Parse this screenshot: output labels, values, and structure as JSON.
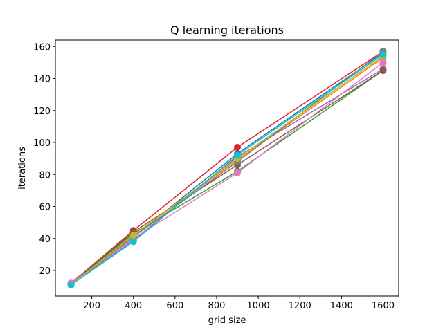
{
  "chart_data": {
    "type": "line",
    "title": "Q learning iterations",
    "xlabel": "grid size",
    "ylabel": "iterations",
    "xlim": [
      25,
      1675
    ],
    "ylim": [
      4,
      164
    ],
    "xticks": [
      200,
      400,
      600,
      800,
      1000,
      1200,
      1400,
      1600
    ],
    "yticks": [
      20,
      40,
      60,
      80,
      100,
      120,
      140,
      160
    ],
    "grid": false,
    "legend": "none",
    "marker": "circle",
    "x": [
      100,
      400,
      900,
      1600
    ],
    "series": [
      {
        "color": "#1f77b4",
        "values": [
          12,
          41,
          93,
          156
        ]
      },
      {
        "color": "#ff7f0e",
        "values": [
          12,
          42,
          89,
          153
        ]
      },
      {
        "color": "#2ca02c",
        "values": [
          12,
          43,
          82,
          145
        ]
      },
      {
        "color": "#d62728",
        "values": [
          12,
          45,
          97,
          157
        ]
      },
      {
        "color": "#9467bd",
        "values": [
          11,
          39,
          91,
          146
        ]
      },
      {
        "color": "#8c564b",
        "values": [
          12,
          44,
          86,
          145
        ]
      },
      {
        "color": "#e377c2",
        "values": [
          12,
          40,
          81,
          150
        ]
      },
      {
        "color": "#7f7f7f",
        "values": [
          11,
          41,
          88,
          157
        ]
      },
      {
        "color": "#bcbd22",
        "values": [
          11,
          42,
          90,
          154
        ]
      },
      {
        "color": "#17becf",
        "values": [
          11,
          38,
          92,
          155
        ]
      }
    ]
  }
}
